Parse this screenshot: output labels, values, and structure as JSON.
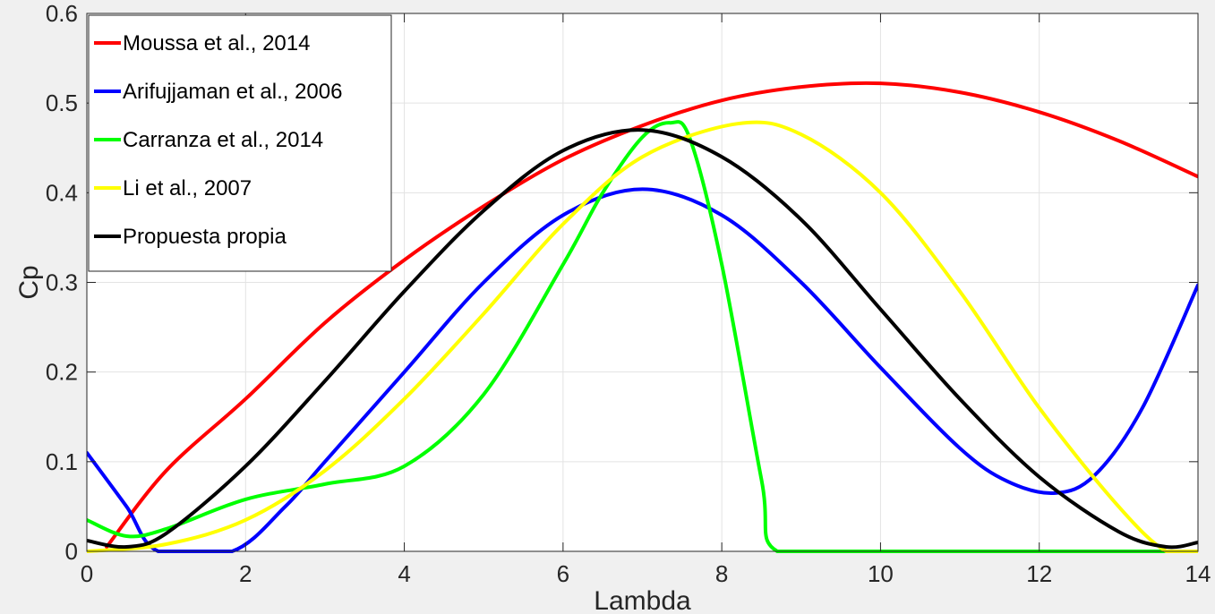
{
  "chart_data": {
    "type": "line",
    "xlabel": "Lambda",
    "ylabel": "Cp",
    "xlim": [
      0,
      14
    ],
    "ylim": [
      0,
      0.6
    ],
    "xticks": [
      0,
      2,
      4,
      6,
      8,
      10,
      12,
      14
    ],
    "yticks": [
      0,
      0.1,
      0.2,
      0.3,
      0.4,
      0.5,
      0.6
    ],
    "xtick_labels": [
      "0",
      "2",
      "4",
      "6",
      "8",
      "10",
      "12",
      "14"
    ],
    "ytick_labels": [
      "0",
      "0.1",
      "0.2",
      "0.3",
      "0.4",
      "0.5",
      "0.6"
    ],
    "grid": true,
    "legend_position": "top-left",
    "series": [
      {
        "name": "Moussa et al., 2014",
        "color": "#ff0000",
        "x": [
          0.25,
          1,
          2,
          3,
          4,
          5,
          6,
          7,
          8,
          9,
          10,
          11,
          12,
          13,
          14
        ],
        "y": [
          0.005,
          0.09,
          0.17,
          0.255,
          0.325,
          0.385,
          0.437,
          0.475,
          0.503,
          0.518,
          0.522,
          0.512,
          0.49,
          0.458,
          0.418
        ]
      },
      {
        "name": "Arifujjaman et al., 2006",
        "color": "#0000ff",
        "x": [
          0,
          0.5,
          0.9,
          1.83,
          2.5,
          3,
          4,
          5,
          6,
          7,
          8,
          9,
          10,
          11,
          11.6,
          12.2,
          12.7,
          13.3,
          14
        ],
        "y": [
          0.11,
          0.05,
          0.0,
          0.0,
          0.05,
          0.1,
          0.2,
          0.3,
          0.375,
          0.404,
          0.375,
          0.3,
          0.205,
          0.115,
          0.078,
          0.065,
          0.085,
          0.16,
          0.297
        ]
      },
      {
        "name": "Carranza et al., 2014",
        "color": "#00ff00",
        "x": [
          0,
          0.5,
          1,
          2,
          3,
          4,
          5,
          6,
          6.5,
          7,
          7.35,
          7.6,
          8,
          8.5,
          8.7,
          10,
          12,
          13.6
        ],
        "y": [
          0.035,
          0.017,
          0.025,
          0.058,
          0.075,
          0.095,
          0.175,
          0.32,
          0.4,
          0.462,
          0.478,
          0.46,
          0.32,
          0.08,
          0.0,
          0.0,
          0.0,
          0.0
        ]
      },
      {
        "name": "Li et al., 2007",
        "color": "#ffff00",
        "x": [
          0,
          1,
          2,
          3,
          4,
          5,
          6,
          7,
          8.2,
          9,
          10,
          11,
          12,
          13,
          13.6,
          14
        ],
        "y": [
          0.0,
          0.008,
          0.035,
          0.09,
          0.17,
          0.265,
          0.365,
          0.44,
          0.477,
          0.465,
          0.4,
          0.29,
          0.16,
          0.05,
          0.0,
          0.0
        ]
      },
      {
        "name": "Propuesta propia",
        "color": "#000000",
        "x": [
          0,
          0.5,
          1,
          2,
          3,
          4,
          5,
          6,
          7,
          8,
          9,
          10,
          11,
          12,
          13,
          13.6,
          14
        ],
        "y": [
          0.012,
          0.005,
          0.02,
          0.095,
          0.19,
          0.29,
          0.38,
          0.447,
          0.47,
          0.44,
          0.37,
          0.27,
          0.17,
          0.083,
          0.022,
          0.005,
          0.01
        ]
      }
    ]
  }
}
